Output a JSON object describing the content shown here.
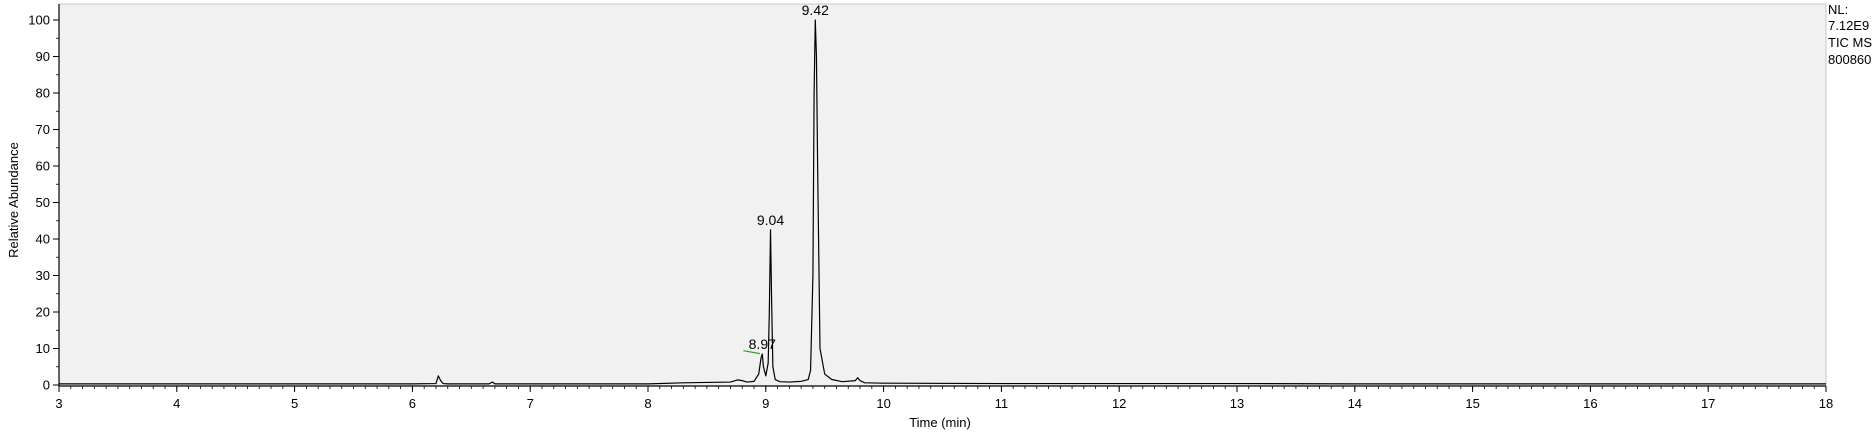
{
  "chart_data": {
    "type": "line",
    "title": "",
    "xlabel": "Time (min)",
    "ylabel": "Relative Abundance",
    "xlim": [
      3,
      18
    ],
    "ylim": [
      0,
      100
    ],
    "x_ticks": [
      "3",
      "4",
      "5",
      "6",
      "7",
      "8",
      "9",
      "10",
      "11",
      "12",
      "13",
      "14",
      "15",
      "16",
      "17",
      "18"
    ],
    "y_ticks": [
      "0",
      "10",
      "20",
      "30",
      "40",
      "50",
      "60",
      "70",
      "80",
      "90",
      "100"
    ],
    "grid": false,
    "plot_background": "#f1f1f1",
    "line_color": "#000000",
    "baseline_marker_color": "#2ca02c",
    "info": [
      "NL:",
      "7.12E9",
      "TIC MS",
      "800860"
    ],
    "series": [
      {
        "x": [
          3.0,
          6.0,
          6.2,
          6.22,
          6.24,
          6.26,
          6.3,
          6.65,
          6.68,
          6.7,
          7.0,
          8.0,
          8.3,
          8.7,
          8.76,
          8.8,
          8.84,
          8.9,
          8.94,
          8.96,
          8.97,
          8.98,
          9.0,
          9.02,
          9.03,
          9.04,
          9.05,
          9.06,
          9.08,
          9.12,
          9.2,
          9.3,
          9.36,
          9.38,
          9.4,
          9.41,
          9.42,
          9.43,
          9.44,
          9.46,
          9.5,
          9.56,
          9.65,
          9.76,
          9.78,
          9.8,
          9.84,
          10.0,
          11.0,
          12.0,
          13.0,
          14.0,
          15.0,
          16.0,
          17.0,
          18.0
        ],
        "y": [
          0.3,
          0.3,
          0.4,
          2.5,
          1.2,
          0.4,
          0.3,
          0.3,
          0.8,
          0.3,
          0.3,
          0.3,
          0.6,
          0.8,
          1.4,
          1.2,
          0.8,
          1.0,
          3.0,
          7.5,
          8.5,
          5.0,
          2.5,
          6.0,
          20.0,
          42.5,
          22.0,
          5.0,
          1.5,
          0.9,
          0.8,
          1.0,
          1.5,
          4.0,
          30.0,
          80.0,
          100.0,
          90.0,
          60.0,
          10.0,
          3.0,
          1.5,
          0.9,
          1.2,
          2.0,
          1.2,
          0.6,
          0.5,
          0.4,
          0.4,
          0.4,
          0.3,
          0.3,
          0.3,
          0.3,
          0.3
        ]
      }
    ],
    "peak_labels": [
      {
        "x": 8.97,
        "y": 8.5,
        "text": "8.97"
      },
      {
        "x": 9.04,
        "y": 42.5,
        "text": "9.04"
      },
      {
        "x": 9.42,
        "y": 100.0,
        "text": "9.42"
      }
    ],
    "baseline_marker": {
      "x1": 8.81,
      "x2": 8.95,
      "y1": 9.4,
      "y2": 8.6
    }
  }
}
